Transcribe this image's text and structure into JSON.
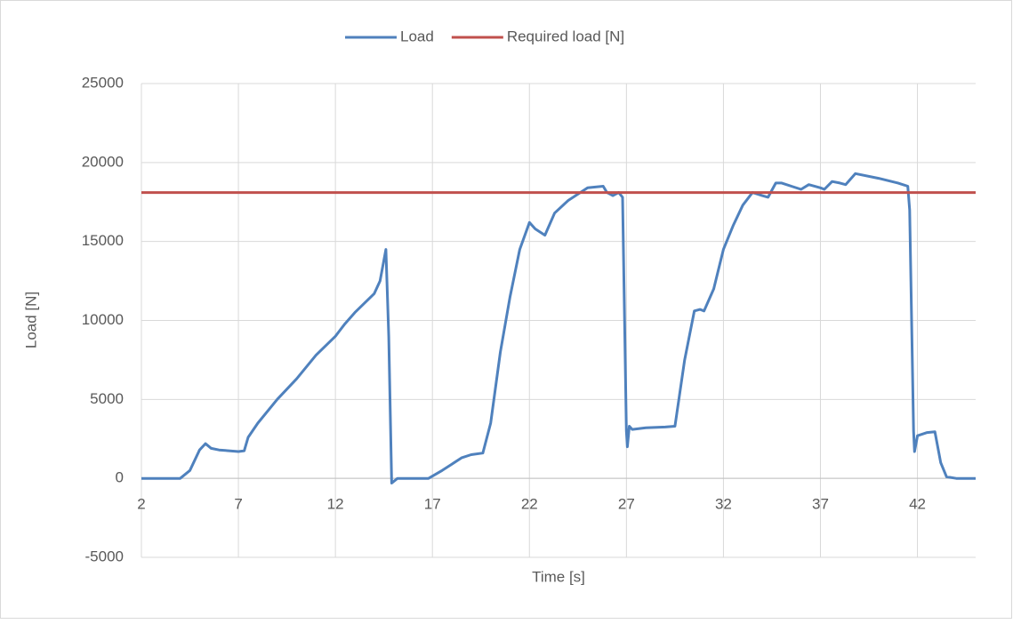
{
  "chart_data": {
    "type": "line",
    "xlabel": "Time [s]",
    "ylabel": "Load [N]",
    "series": [
      {
        "name": "Load",
        "color": "#4f81bd",
        "x": [
          2,
          4,
          4.5,
          5,
          5.3,
          5.6,
          6,
          6.5,
          7,
          7.3,
          7.5,
          8,
          9,
          10,
          11,
          12,
          12.5,
          13,
          14,
          14.3,
          14.6,
          14.75,
          14.9,
          15.2,
          16.8,
          17.5,
          18,
          18.5,
          19,
          19.6,
          20,
          20.5,
          21,
          21.5,
          22,
          22.3,
          22.8,
          23.3,
          24,
          25,
          25.8,
          26,
          26.3,
          26.6,
          26.8,
          27,
          27.05,
          27.15,
          27.3,
          28,
          29,
          29.5,
          30,
          30.5,
          30.8,
          31,
          31.5,
          32,
          32.5,
          33,
          33.5,
          34,
          34.3,
          34.7,
          35,
          35.5,
          36,
          36.4,
          37,
          37.2,
          37.6,
          38,
          38.3,
          38.8,
          40,
          41,
          41.5,
          41.6,
          41.8,
          41.85,
          42,
          42.5,
          42.9,
          43.2,
          43.5,
          44,
          45
        ],
        "values": [
          0,
          0,
          500,
          1800,
          2200,
          1900,
          1800,
          1750,
          1700,
          1750,
          2600,
          3500,
          5000,
          6300,
          7800,
          9000,
          9800,
          10500,
          11700,
          12500,
          14500,
          9000,
          -300,
          0,
          0,
          500,
          900,
          1300,
          1500,
          1600,
          3500,
          8000,
          11500,
          14500,
          16200,
          15800,
          15400,
          16800,
          17600,
          18400,
          18500,
          18100,
          17900,
          18100,
          17800,
          3000,
          2000,
          3300,
          3100,
          3200,
          3250,
          3300,
          7500,
          10600,
          10700,
          10600,
          12000,
          14500,
          16000,
          17300,
          18100,
          17900,
          17800,
          18700,
          18700,
          18500,
          18300,
          18600,
          18400,
          18300,
          18800,
          18700,
          18600,
          19300,
          19000,
          18700,
          18500,
          17000,
          3000,
          1700,
          2700,
          2900,
          2950,
          1000,
          100,
          0,
          0
        ]
      },
      {
        "name": "Required load [N]",
        "color": "#c0504d",
        "x": [
          2,
          45
        ],
        "values": [
          18100,
          18100
        ]
      }
    ],
    "xlim": [
      2,
      45
    ],
    "xticks": [
      2,
      7,
      12,
      17,
      22,
      27,
      32,
      37,
      42
    ],
    "ylim": [
      -5000,
      25000
    ],
    "yticks": [
      -5000,
      0,
      5000,
      10000,
      15000,
      20000,
      25000
    ],
    "grid": true,
    "legend": "top"
  }
}
